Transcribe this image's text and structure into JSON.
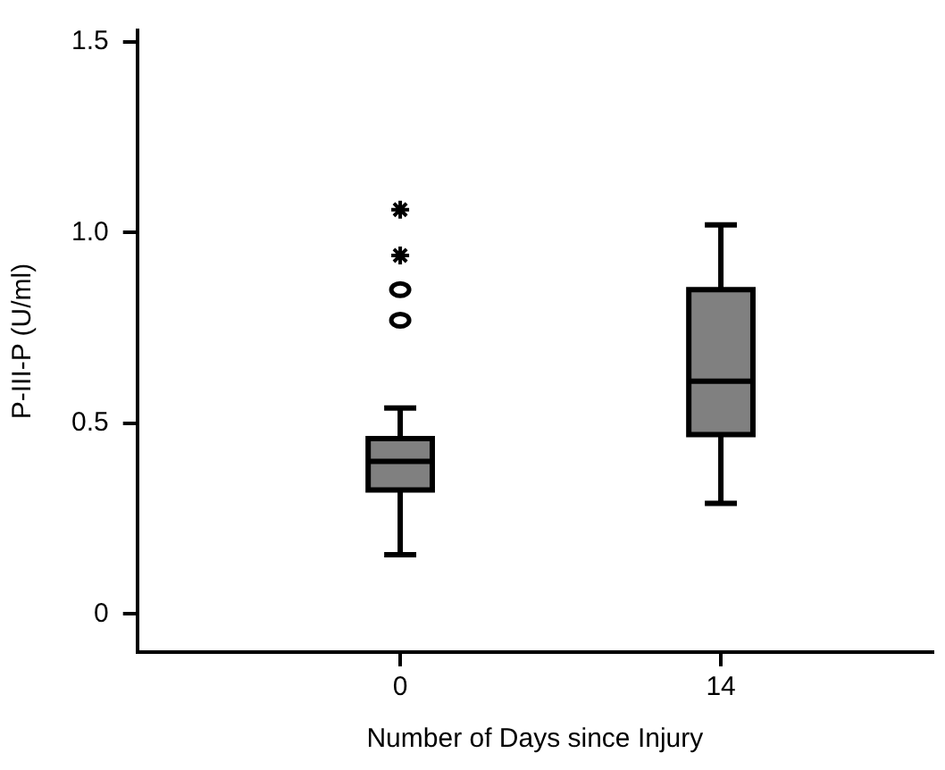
{
  "chart_data": {
    "type": "box",
    "xlabel": "Number of Days since Injury",
    "ylabel": "P-III-P (U/ml)",
    "categories": [
      "0",
      "14"
    ],
    "ylim": [
      -0.1,
      1.53
    ],
    "yticks": [
      0,
      {
        "value": 0.5,
        "label": "0.5"
      },
      {
        "value": 1,
        "label": "1.0"
      },
      {
        "value": 1.5,
        "label": "1.5"
      }
    ],
    "grid": false,
    "legend": false,
    "series": [
      {
        "type": "box",
        "color": "#808080",
        "boxes": [
          {
            "low": 0.155,
            "q1": 0.325,
            "median": 0.4,
            "q3": 0.46,
            "high": 0.54,
            "outliers": [
              0.77,
              0.85
            ]
          },
          {
            "low": 0.29,
            "q1": 0.47,
            "median": 0.61,
            "q3": 0.85,
            "high": 1.02
          }
        ]
      },
      {
        "type": "scatter",
        "marker": "cross",
        "color": "#000000",
        "x": [
          "0",
          "0"
        ],
        "values": [
          0.94,
          1.06
        ]
      }
    ]
  }
}
